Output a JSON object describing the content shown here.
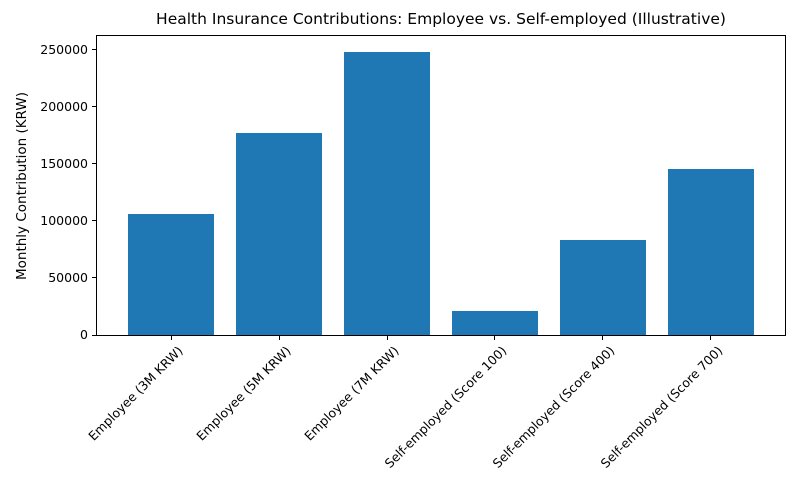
{
  "chart_data": {
    "type": "bar",
    "title": "Health Insurance Contributions: Employee vs. Self-employed (Illustrative)",
    "xlabel": "",
    "ylabel": "Monthly Contribution (KRW)",
    "categories": [
      "Employee (3M KRW)",
      "Employee (5M KRW)",
      "Employee (7M KRW)",
      "Self-employed (Score 100)",
      "Self-employed (Score 400)",
      "Self-employed (Score 700)"
    ],
    "values": [
      106350,
      177250,
      248150,
      20840,
      83360,
      145880
    ],
    "yticks": [
      0,
      50000,
      100000,
      150000,
      200000,
      250000
    ],
    "ylim": [
      0,
      262260
    ],
    "bar_color": "#1f77b4",
    "grid": false,
    "legend": null,
    "xtick_rotation_deg": 45
  }
}
